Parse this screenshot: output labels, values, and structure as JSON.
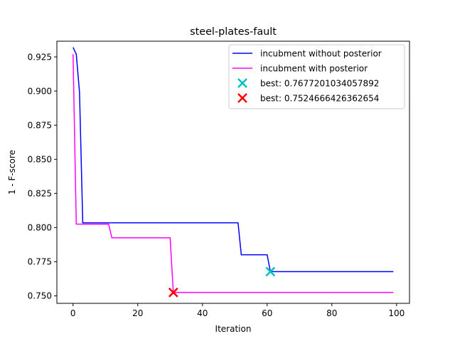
{
  "chart_data": {
    "type": "line",
    "title": "steel-plates-fault",
    "xlabel": "Iteration",
    "ylabel": "1 - F-score",
    "xlim": [
      -5,
      104
    ],
    "ylim": [
      0.7445,
      0.9365
    ],
    "xticks": [
      "0",
      "20",
      "40",
      "60",
      "80",
      "100"
    ],
    "xtick_values": [
      0,
      20,
      40,
      60,
      80,
      100
    ],
    "yticks": [
      "0.750",
      "0.775",
      "0.800",
      "0.825",
      "0.850",
      "0.875",
      "0.900",
      "0.925"
    ],
    "ytick_values": [
      0.75,
      0.775,
      0.8,
      0.825,
      0.85,
      0.875,
      0.9,
      0.925
    ],
    "grid": false,
    "legend_position": "top-right",
    "series": [
      {
        "name": "incubment without posterior",
        "color": "#0000ff",
        "x": [
          0,
          1,
          2,
          3,
          51,
          52,
          60,
          61,
          99
        ],
        "y": [
          0.932,
          0.927,
          0.899,
          0.8035,
          0.8035,
          0.7801,
          0.7801,
          0.7677,
          0.7677
        ]
      },
      {
        "name": "incubment with posterior",
        "color": "#ff00ff",
        "x": [
          0,
          1,
          11,
          12,
          30,
          31,
          99
        ],
        "y": [
          0.927,
          0.8025,
          0.8025,
          0.7925,
          0.7925,
          0.7525,
          0.7525
        ]
      }
    ],
    "markers": [
      {
        "name": "best: 0.7677201034057892",
        "marker": "x",
        "color": "#00bfbf",
        "x": 61,
        "y": 0.7677201034057892
      },
      {
        "name": "best: 0.7524666426362654",
        "marker": "x",
        "color": "#ff0000",
        "x": 31,
        "y": 0.7524666426362654
      }
    ]
  }
}
